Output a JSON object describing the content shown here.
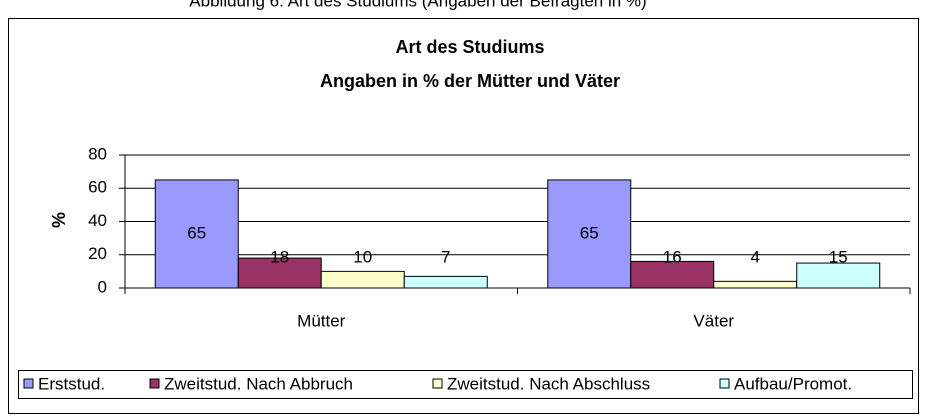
{
  "caption": "Abbildung 6: Art des Studiums (Angaben der Befragten in %)",
  "chart_data": {
    "type": "bar",
    "title": "Art des Studiums",
    "subtitle": "Angaben in % der Mütter und Väter",
    "y_label": "%",
    "categories": [
      "Mütter",
      "Väter"
    ],
    "series": [
      {
        "name": "Erststud.",
        "color": "#9999ff",
        "values": [
          65,
          65
        ]
      },
      {
        "name": "Zweitstud. Nach Abbruch",
        "color": "#993366",
        "values": [
          18,
          16
        ]
      },
      {
        "name": "Zweitstud. Nach Abschluss",
        "color": "#ffffcc",
        "values": [
          10,
          4
        ]
      },
      {
        "name": "Aufbau/Promot.",
        "color": "#ccffff",
        "values": [
          7,
          15
        ]
      }
    ],
    "ylim": [
      0,
      80
    ],
    "yticks": [
      0,
      20,
      40,
      60,
      80
    ],
    "grid": true,
    "legend": "bottom"
  }
}
